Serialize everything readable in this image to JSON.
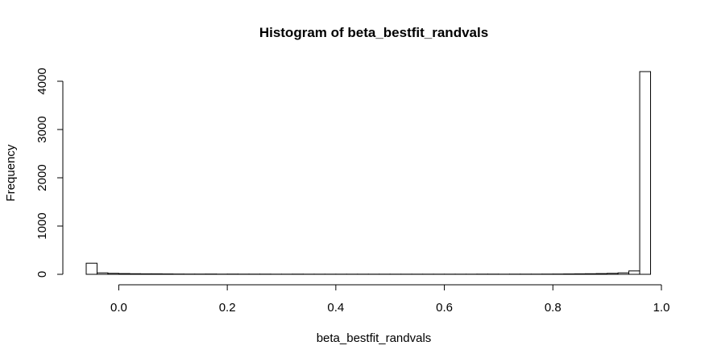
{
  "chart_data": {
    "type": "bar",
    "title": "Histogram of beta_bestfit_randvals",
    "xlabel": "beta_bestfit_randvals",
    "ylabel": "Frequency",
    "xlim": [
      -0.06,
      1.0
    ],
    "ylim": [
      0,
      4200
    ],
    "x_ticks": [
      0.0,
      0.2,
      0.4,
      0.6,
      0.8,
      1.0
    ],
    "x_tick_labels": [
      "0.0",
      "0.2",
      "0.4",
      "0.6",
      "0.8",
      "1.0"
    ],
    "y_ticks": [
      0,
      1000,
      2000,
      3000,
      4000
    ],
    "y_tick_labels": [
      "0",
      "1000",
      "2000",
      "3000",
      "4000"
    ],
    "bin_width": 0.02,
    "bin_edges_start": -0.06,
    "values": [
      230,
      30,
      20,
      15,
      12,
      10,
      10,
      8,
      6,
      5,
      5,
      6,
      4,
      5,
      4,
      4,
      4,
      3,
      3,
      4,
      3,
      3,
      3,
      3,
      3,
      3,
      3,
      3,
      3,
      3,
      3,
      3,
      3,
      3,
      3,
      3,
      4,
      4,
      3,
      4,
      4,
      4,
      5,
      6,
      8,
      10,
      12,
      15,
      20,
      30,
      70,
      4200
    ],
    "grid": false,
    "legend": "none"
  }
}
